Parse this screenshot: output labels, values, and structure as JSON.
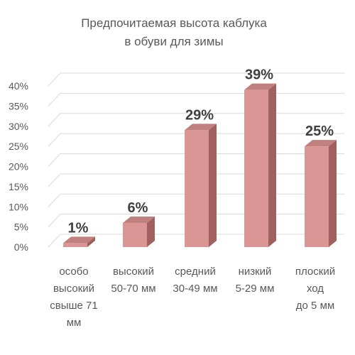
{
  "chart_data": {
    "type": "bar",
    "title_lines": [
      "Предпочитаемая высота каблука",
      "в обуви для зимы"
    ],
    "categories": [
      [
        "особо",
        "высокий",
        "свыше 71",
        "мм"
      ],
      [
        "высокий",
        "50-70 мм"
      ],
      [
        "средний",
        "30-49 мм"
      ],
      [
        "низкий",
        "5-29 мм"
      ],
      [
        "плоский",
        "ход",
        "до 5 мм"
      ]
    ],
    "values": [
      1,
      6,
      29,
      39,
      25
    ],
    "data_labels": [
      "1%",
      "6%",
      "29%",
      "39%",
      "25%"
    ],
    "y_ticks": [
      "0%",
      "5%",
      "10%",
      "15%",
      "20%",
      "25%",
      "30%",
      "35%",
      "40%"
    ],
    "ylim": [
      0,
      40
    ],
    "grid": true,
    "style": "3d-clustered-column",
    "colors": {
      "bar_front": "#d99694",
      "bar_side": "#a0605e",
      "bar_top": "#c0807e",
      "grid": "#d9d9d9",
      "text": "#595959",
      "label": "#404040"
    }
  }
}
